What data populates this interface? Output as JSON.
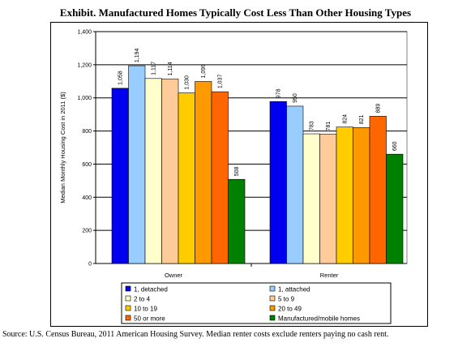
{
  "title": "Exhibit. Manufactured Homes Typically Cost Less Than Other Housing Types",
  "source": "Source: U.S. Census Bureau, 2011 American Housing Survey. Median renter costs exclude renters paying no cash rent.",
  "chart_data": {
    "type": "bar",
    "title": "Exhibit. Manufactured Homes Typically Cost Less Than Other Housing Types",
    "xlabel": "",
    "ylabel": "Median Monthly Housing Cost in 2011 ($)",
    "ylim": [
      0,
      1400
    ],
    "yticks": [
      0,
      200,
      400,
      600,
      800,
      1000,
      1200,
      1400
    ],
    "ytick_labels": [
      "0",
      "200",
      "400",
      "600",
      "800",
      "1,000",
      "1,200",
      "1,400"
    ],
    "categories": [
      "Owner",
      "Renter"
    ],
    "grid": true,
    "legend_position": "bottom",
    "series": [
      {
        "name": "1, detached",
        "color": "#0000ee",
        "values": [
          1058,
          978
        ],
        "labels": [
          "1,058",
          "978"
        ]
      },
      {
        "name": "1, attached",
        "color": "#99ccff",
        "values": [
          1194,
          950
        ],
        "labels": [
          "1,194",
          "950"
        ]
      },
      {
        "name": "2 to 4",
        "color": "#ffffcc",
        "values": [
          1117,
          783
        ],
        "labels": [
          "1,117",
          "783"
        ]
      },
      {
        "name": "5 to 9",
        "color": "#ffcc99",
        "values": [
          1114,
          781
        ],
        "labels": [
          "1,114",
          "781"
        ]
      },
      {
        "name": "10 to 19",
        "color": "#ffcc00",
        "values": [
          1030,
          824
        ],
        "labels": [
          "1,030",
          "824"
        ]
      },
      {
        "name": "20 to 49",
        "color": "#ff9900",
        "values": [
          1099,
          821
        ],
        "labels": [
          "1,099",
          "821"
        ]
      },
      {
        "name": "50 or more",
        "color": "#ff6600",
        "values": [
          1037,
          889
        ],
        "labels": [
          "1,037",
          "889"
        ]
      },
      {
        "name": "Manufactured/mobile homes",
        "color": "#008000",
        "values": [
          508,
          660
        ],
        "labels": [
          "508",
          "660"
        ]
      }
    ]
  }
}
